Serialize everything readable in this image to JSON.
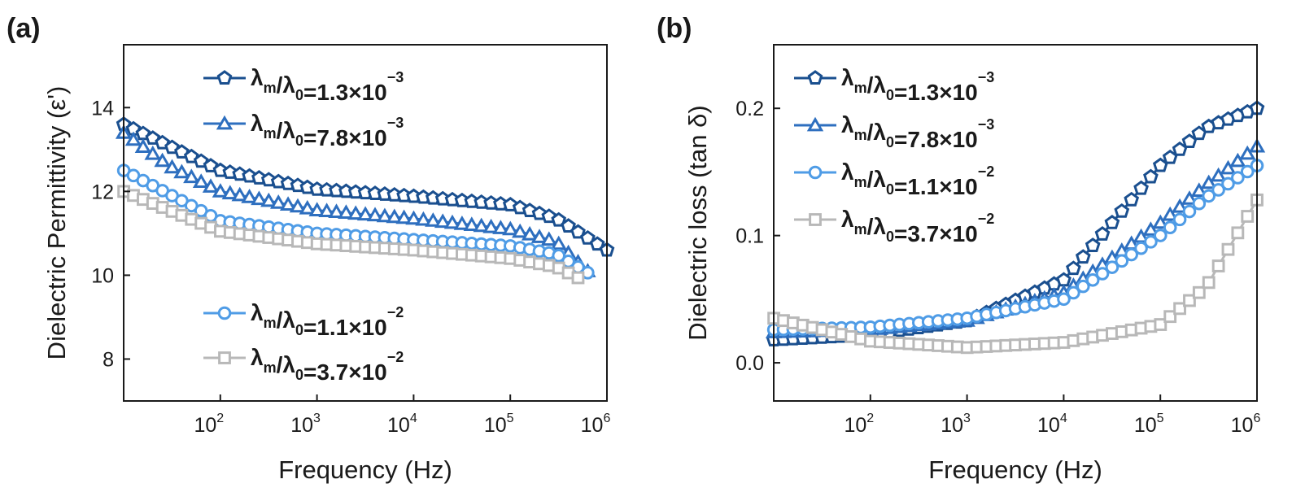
{
  "chart_data": [
    {
      "panel_label": "(a)",
      "type": "line",
      "xlabel": "Frequency (Hz)",
      "ylabel": "Dielectric Permittivity (ε')",
      "x_scale": "log",
      "xlim": [
        10,
        1000000
      ],
      "ylim": [
        7,
        15.5
      ],
      "x_ticks": [
        {
          "base": "10",
          "exp": "2"
        },
        {
          "base": "10",
          "exp": "3"
        },
        {
          "base": "10",
          "exp": "4"
        },
        {
          "base": "10",
          "exp": "5"
        },
        {
          "base": "10",
          "exp": "6"
        }
      ],
      "y_ticks": [
        "8",
        "10",
        "12",
        "14"
      ],
      "legend": [
        "top-left",
        "bottom-left"
      ],
      "series": [
        {
          "name": "λm/λ0=1.3×10−3",
          "marker": "pentagon",
          "color": "#1a4f8f",
          "legend_group": 0,
          "points": [
            [
              10,
              13.6
            ],
            [
              100,
              12.5
            ],
            [
              1000,
              12.05
            ],
            [
              10000,
              11.88
            ],
            [
              100000,
              11.68
            ],
            [
              300000,
              11.35
            ],
            [
              1000000,
              10.6
            ]
          ]
        },
        {
          "name": "λm/λ0=7.8×10−3",
          "marker": "triangle",
          "color": "#2e6fbf",
          "legend_group": 0,
          "points": [
            [
              10,
              13.4
            ],
            [
              30,
              12.6
            ],
            [
              100,
              12.0
            ],
            [
              1000,
              11.55
            ],
            [
              10000,
              11.35
            ],
            [
              100000,
              11.1
            ],
            [
              300000,
              10.8
            ],
            [
              700000,
              10.0
            ]
          ]
        },
        {
          "name": "λm/λ0=1.1×10−2",
          "marker": "circle",
          "color": "#4f9ce6",
          "legend_group": 1,
          "points": [
            [
              10,
              12.5
            ],
            [
              100,
              11.3
            ],
            [
              1000,
              11.0
            ],
            [
              10000,
              10.85
            ],
            [
              100000,
              10.7
            ],
            [
              300000,
              10.5
            ],
            [
              700000,
              10.0
            ]
          ]
        },
        {
          "name": "λm/λ0=3.7×10−2",
          "marker": "square",
          "color": "#b8b8b8",
          "legend_group": 1,
          "points": [
            [
              10,
              12.0
            ],
            [
              100,
              11.05
            ],
            [
              1000,
              10.75
            ],
            [
              10000,
              10.6
            ],
            [
              100000,
              10.4
            ],
            [
              300000,
              10.2
            ],
            [
              600000,
              9.85
            ]
          ]
        }
      ]
    },
    {
      "panel_label": "(b)",
      "type": "line",
      "xlabel": "Frequency (Hz)",
      "ylabel": "Dielectric loss (tan δ)",
      "x_scale": "log",
      "xlim": [
        10,
        1000000
      ],
      "ylim": [
        -0.03,
        0.25
      ],
      "x_ticks": [
        {
          "base": "10",
          "exp": "2"
        },
        {
          "base": "10",
          "exp": "3"
        },
        {
          "base": "10",
          "exp": "4"
        },
        {
          "base": "10",
          "exp": "5"
        },
        {
          "base": "10",
          "exp": "6"
        }
      ],
      "y_ticks": [
        "0.0",
        "0.1",
        "0.2"
      ],
      "legend": [
        "top-left"
      ],
      "series": [
        {
          "name": "λm/λ0=1.3×10−3",
          "marker": "pentagon",
          "color": "#1a4f8f",
          "legend_group": 0,
          "points": [
            [
              10,
              0.018
            ],
            [
              100,
              0.022
            ],
            [
              1000,
              0.033
            ],
            [
              10000,
              0.065
            ],
            [
              100000,
              0.155
            ],
            [
              300000,
              0.185
            ],
            [
              1000000,
              0.2
            ]
          ]
        },
        {
          "name": "λm/λ0=7.8×10−3",
          "marker": "triangle",
          "color": "#2e6fbf",
          "legend_group": 0,
          "points": [
            [
              10,
              0.024
            ],
            [
              100,
              0.026
            ],
            [
              1000,
              0.033
            ],
            [
              10000,
              0.055
            ],
            [
              100000,
              0.11
            ],
            [
              300000,
              0.14
            ],
            [
              1000000,
              0.17
            ]
          ]
        },
        {
          "name": "λm/λ0=1.1×10−2",
          "marker": "circle",
          "color": "#4f9ce6",
          "legend_group": 0,
          "points": [
            [
              10,
              0.026
            ],
            [
              100,
              0.028
            ],
            [
              1000,
              0.035
            ],
            [
              10000,
              0.05
            ],
            [
              100000,
              0.1
            ],
            [
              300000,
              0.13
            ],
            [
              1000000,
              0.155
            ]
          ]
        },
        {
          "name": "λm/λ0=3.7×10−2",
          "marker": "square",
          "color": "#b8b8b8",
          "legend_group": 0,
          "points": [
            [
              10,
              0.035
            ],
            [
              100,
              0.017
            ],
            [
              1000,
              0.012
            ],
            [
              10000,
              0.016
            ],
            [
              100000,
              0.03
            ],
            [
              300000,
              0.06
            ],
            [
              1000000,
              0.128
            ]
          ]
        }
      ]
    }
  ]
}
